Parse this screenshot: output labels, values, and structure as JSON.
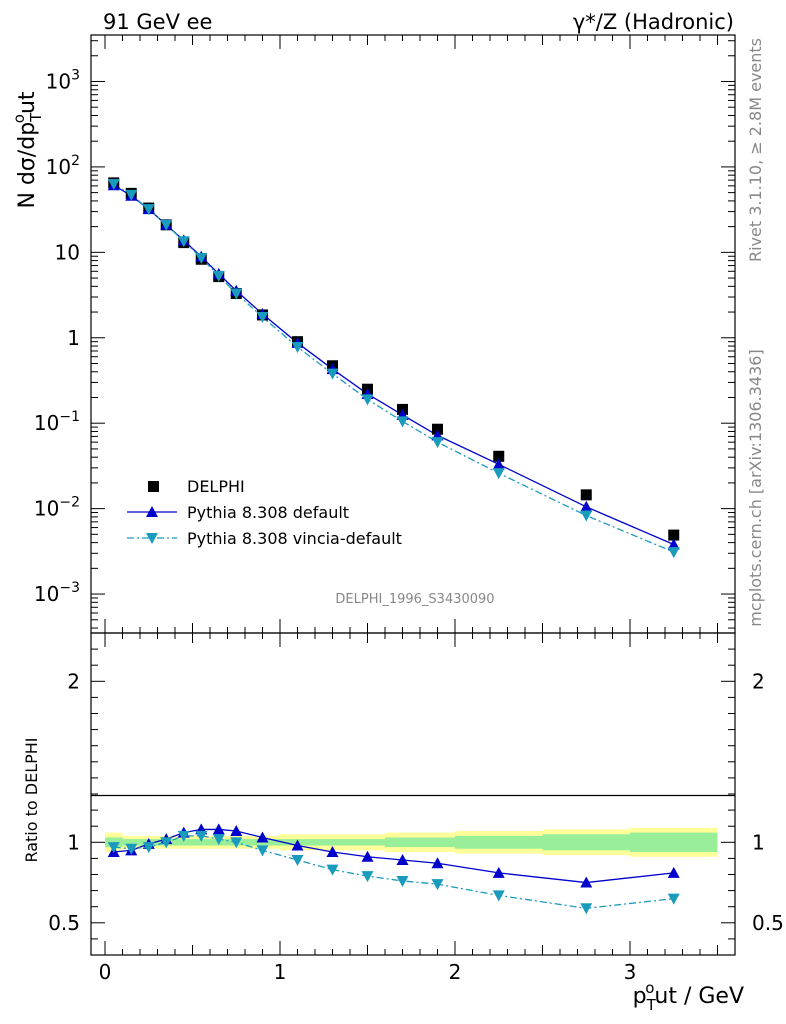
{
  "header": {
    "left": "91 GeV ee",
    "right": "γ*/Z (Hadronic)"
  },
  "side_labels": {
    "rivet": "Rivet 3.1.10, ≥ 2.8M events",
    "mcplots": "mcplots.cern.ch [arXiv:1306.3436]"
  },
  "watermark": "DELPHI_1996_S3430090",
  "legend": {
    "data": "DELPHI",
    "pythia": "Pythia 8.308 default",
    "vincia": "Pythia 8.308 vincia-default"
  },
  "axis_text": {
    "top_ylabel": "N dσ/dp",
    "top_ylabel_sub": "T",
    "top_ylabel_sup": "o",
    "top_ylabel_tail": "ut",
    "ratio_ylabel": "Ratio to DELPHI",
    "xlabel_main": "p",
    "xlabel_sub": "T",
    "xlabel_sup": "o",
    "xlabel_tail": "ut / GeV"
  },
  "chart_data": [
    {
      "type": "scatter",
      "yscale": "log",
      "xlim": [
        -0.08,
        3.6
      ],
      "ylim": [
        0.00035,
        3500
      ],
      "yticks": [
        {
          "value": 1000,
          "base": "10",
          "exp": "3"
        },
        {
          "value": 100,
          "base": "10",
          "exp": "2"
        },
        {
          "value": 10,
          "base": "10",
          "exp": ""
        },
        {
          "value": 1,
          "base": "1",
          "exp": ""
        },
        {
          "value": 0.1,
          "base": "10",
          "exp": "−1"
        },
        {
          "value": 0.01,
          "base": "10",
          "exp": "−2"
        },
        {
          "value": 0.001,
          "base": "10",
          "exp": "−3"
        }
      ],
      "series": [
        {
          "name": "DELPHI",
          "color": "#000000",
          "marker": "square",
          "x": [
            0.05,
            0.15,
            0.25,
            0.35,
            0.45,
            0.55,
            0.65,
            0.75,
            0.9,
            1.1,
            1.3,
            1.5,
            1.7,
            1.9,
            2.25,
            2.75,
            3.25
          ],
          "y": [
            65,
            49,
            33,
            21,
            13,
            8.3,
            5.2,
            3.3,
            1.85,
            0.9,
            0.47,
            0.25,
            0.145,
            0.085,
            0.041,
            0.0145,
            0.0049
          ]
        },
        {
          "name": "Pythia 8.308 default",
          "color": "#0000cc",
          "marker": "triangle-up",
          "x": [
            0.05,
            0.15,
            0.25,
            0.35,
            0.45,
            0.55,
            0.65,
            0.75,
            0.9,
            1.1,
            1.3,
            1.5,
            1.7,
            1.9,
            2.25,
            2.75,
            3.25
          ],
          "y": [
            61,
            46,
            32,
            21,
            13.8,
            8.9,
            5.6,
            3.55,
            1.9,
            0.87,
            0.43,
            0.22,
            0.125,
            0.072,
            0.033,
            0.0105,
            0.0038
          ]
        },
        {
          "name": "Pythia 8.308 vincia-default",
          "color": "#1a9bbd",
          "marker": "triangle-down",
          "x": [
            0.05,
            0.15,
            0.25,
            0.35,
            0.45,
            0.55,
            0.65,
            0.75,
            0.9,
            1.1,
            1.3,
            1.5,
            1.7,
            1.9,
            2.25,
            2.75,
            3.25
          ],
          "y": [
            63,
            47,
            32,
            21,
            13.5,
            8.6,
            5.3,
            3.3,
            1.75,
            0.78,
            0.38,
            0.19,
            0.105,
            0.06,
            0.026,
            0.0083,
            0.0031
          ]
        }
      ]
    },
    {
      "type": "line",
      "xlim": [
        -0.08,
        3.6
      ],
      "ylim": [
        0.3,
        2.3
      ],
      "xticks": [
        0,
        1,
        2,
        3
      ],
      "yticks": [
        0.5,
        1,
        2
      ],
      "band_x": [
        0,
        0.1,
        0.2,
        0.3,
        0.4,
        0.5,
        0.6,
        0.7,
        0.8,
        1.0,
        1.2,
        1.4,
        1.6,
        1.8,
        2.0,
        2.5,
        3.0,
        3.5
      ],
      "band_inner": [
        0.03,
        0.02,
        0.02,
        0.02,
        0.02,
        0.02,
        0.02,
        0.02,
        0.02,
        0.02,
        0.02,
        0.02,
        0.03,
        0.03,
        0.04,
        0.05,
        0.06
      ],
      "band_outer": [
        0.06,
        0.04,
        0.04,
        0.04,
        0.04,
        0.04,
        0.04,
        0.04,
        0.04,
        0.05,
        0.05,
        0.05,
        0.06,
        0.06,
        0.07,
        0.08,
        0.09
      ],
      "series": [
        {
          "name": "Pythia 8.308 default",
          "color": "#0000cc",
          "marker": "triangle-up",
          "x": [
            0.05,
            0.15,
            0.25,
            0.35,
            0.45,
            0.55,
            0.65,
            0.75,
            0.9,
            1.1,
            1.3,
            1.5,
            1.7,
            1.9,
            2.25,
            2.75,
            3.25
          ],
          "y": [
            0.94,
            0.95,
            0.99,
            1.02,
            1.06,
            1.08,
            1.08,
            1.07,
            1.03,
            0.98,
            0.94,
            0.91,
            0.89,
            0.87,
            0.81,
            0.75,
            0.81
          ]
        },
        {
          "name": "Pythia 8.308 vincia-default",
          "color": "#1a9bbd",
          "marker": "triangle-down",
          "x": [
            0.05,
            0.15,
            0.25,
            0.35,
            0.45,
            0.55,
            0.65,
            0.75,
            0.9,
            1.1,
            1.3,
            1.5,
            1.7,
            1.9,
            2.25,
            2.75,
            3.25
          ],
          "y": [
            0.97,
            0.96,
            0.97,
            1.0,
            1.04,
            1.04,
            1.02,
            1.0,
            0.95,
            0.89,
            0.83,
            0.79,
            0.76,
            0.74,
            0.67,
            0.59,
            0.65
          ]
        }
      ]
    }
  ]
}
